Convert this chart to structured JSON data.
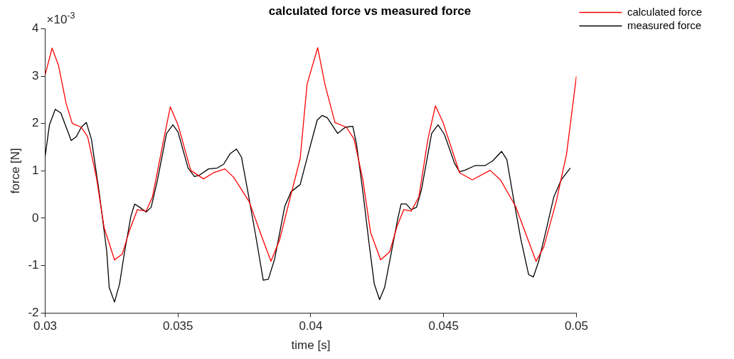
{
  "chart_data": {
    "type": "line",
    "title": "calculated force vs measured force",
    "xlabel": "time [s]",
    "ylabel": "force [N]",
    "xlim": [
      0.03,
      0.05
    ],
    "xticks": [
      0.03,
      0.035,
      0.04,
      0.045,
      0.05
    ],
    "ylim": [
      -2,
      4
    ],
    "yticks": [
      -2,
      -1,
      0,
      1,
      2,
      3,
      4
    ],
    "annotations": [
      "×10$^{-3}$"
    ],
    "grid": false,
    "legend": "top right",
    "marker": "none",
    "series": [
      {
        "name": "calculated force",
        "color": "#ff0000",
        "x": [
          0.03,
          0.03026,
          0.0305,
          0.03079,
          0.03102,
          0.03136,
          0.0316,
          0.03193,
          0.03222,
          0.03261,
          0.0329,
          0.03318,
          0.03347,
          0.0338,
          0.03404,
          0.03443,
          0.03471,
          0.035,
          0.03548,
          0.03596,
          0.03634,
          0.03677,
          0.0371,
          0.03768,
          0.03816,
          0.0385,
          0.03883,
          0.03921,
          0.0396,
          0.03986,
          0.04026,
          0.04053,
          0.04091,
          0.04134,
          0.04163,
          0.04196,
          0.04225,
          0.04263,
          0.04297,
          0.04326,
          0.0435,
          0.04378,
          0.04407,
          0.04441,
          0.04469,
          0.04498,
          0.0456,
          0.04608,
          0.04675,
          0.04714,
          0.04771,
          0.04814,
          0.04848,
          0.04877,
          0.04924,
          0.04963,
          0.05
        ],
        "values": [
          3.03,
          3.59,
          3.23,
          2.42,
          2.0,
          1.92,
          1.72,
          0.86,
          -0.2,
          -0.88,
          -0.76,
          -0.25,
          0.18,
          0.15,
          0.45,
          1.57,
          2.35,
          1.97,
          1.01,
          0.83,
          0.96,
          1.04,
          0.86,
          0.35,
          -0.4,
          -0.91,
          -0.45,
          0.4,
          1.26,
          2.83,
          3.6,
          2.83,
          2.02,
          1.92,
          1.67,
          0.81,
          -0.3,
          -0.88,
          -0.71,
          -0.15,
          0.18,
          0.15,
          0.45,
          1.67,
          2.37,
          2.02,
          0.96,
          0.81,
          1.01,
          0.81,
          0.25,
          -0.4,
          -0.91,
          -0.61,
          0.35,
          1.36,
          3.0
        ]
      },
      {
        "name": "measured force",
        "color": "#000000",
        "x": [
          0.03,
          0.03016,
          0.03038,
          0.03059,
          0.03098,
          0.03117,
          0.03136,
          0.03155,
          0.03174,
          0.03203,
          0.03232,
          0.03241,
          0.03261,
          0.0328,
          0.03299,
          0.03323,
          0.03337,
          0.03356,
          0.0338,
          0.03399,
          0.03423,
          0.03457,
          0.03481,
          0.035,
          0.03538,
          0.03562,
          0.03581,
          0.03615,
          0.03648,
          0.03672,
          0.03696,
          0.0372,
          0.03739,
          0.03763,
          0.03792,
          0.03821,
          0.0384,
          0.03864,
          0.03902,
          0.03926,
          0.0396,
          0.03995,
          0.04024,
          0.04043,
          0.04062,
          0.04101,
          0.0413,
          0.04158,
          0.04172,
          0.04196,
          0.0422,
          0.04239,
          0.04259,
          0.04278,
          0.04302,
          0.04326,
          0.0434,
          0.04359,
          0.04378,
          0.04398,
          0.04417,
          0.04455,
          0.04479,
          0.04503,
          0.04541,
          0.0456,
          0.04579,
          0.04618,
          0.04656,
          0.04685,
          0.04718,
          0.04738,
          0.04762,
          0.04791,
          0.0482,
          0.04838,
          0.04858,
          0.04886,
          0.04915,
          0.04943,
          0.04977
        ],
        "values": [
          1.31,
          1.97,
          2.3,
          2.22,
          1.64,
          1.72,
          1.92,
          2.02,
          1.67,
          0.56,
          -0.71,
          -1.46,
          -1.77,
          -1.39,
          -0.71,
          0.05,
          0.3,
          0.23,
          0.13,
          0.23,
          0.81,
          1.79,
          1.97,
          1.82,
          1.06,
          0.88,
          0.91,
          1.04,
          1.06,
          1.14,
          1.36,
          1.46,
          1.29,
          0.56,
          -0.35,
          -1.31,
          -1.29,
          -0.86,
          0.25,
          0.56,
          0.71,
          1.46,
          2.07,
          2.17,
          2.12,
          1.79,
          1.92,
          1.94,
          1.57,
          0.56,
          -0.56,
          -1.39,
          -1.72,
          -1.46,
          -0.76,
          -0.05,
          0.3,
          0.3,
          0.18,
          0.23,
          0.61,
          1.79,
          1.97,
          1.77,
          1.16,
          0.98,
          1.01,
          1.11,
          1.11,
          1.21,
          1.41,
          1.24,
          0.45,
          -0.45,
          -1.19,
          -1.24,
          -0.91,
          -0.25,
          0.45,
          0.81,
          1.06
        ]
      }
    ]
  }
}
